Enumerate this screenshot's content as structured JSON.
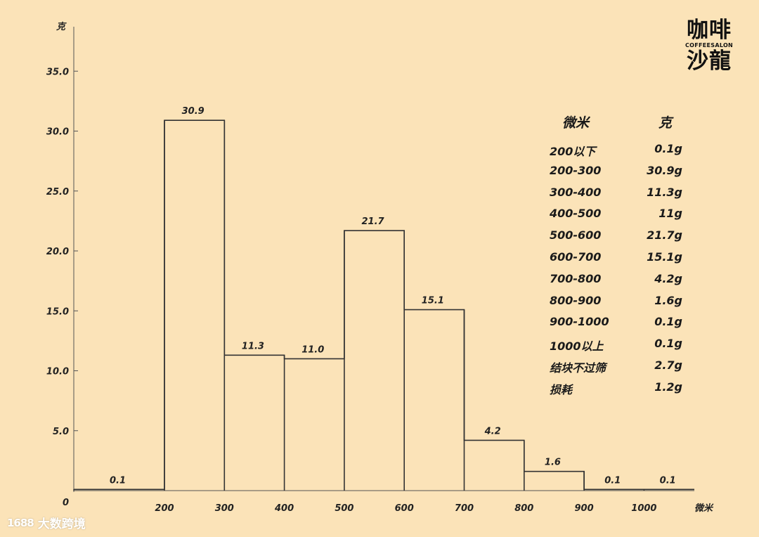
{
  "chart_data": {
    "type": "bar",
    "xlabel": "微米",
    "ylabel": "克",
    "ylim": [
      0,
      38
    ],
    "xlim": [
      0,
      1080
    ],
    "y_ticks": [
      {
        "value": 5,
        "label": "5.0"
      },
      {
        "value": 10,
        "label": "10.0"
      },
      {
        "value": 15,
        "label": "15.0"
      },
      {
        "value": 20,
        "label": "20.0"
      },
      {
        "value": 25,
        "label": "25.0"
      },
      {
        "value": 30,
        "label": "30.0"
      },
      {
        "value": 35,
        "label": "35.0"
      }
    ],
    "origin_label": "0",
    "x_ticks": [
      {
        "value": 200,
        "label": "200"
      },
      {
        "value": 300,
        "label": "300"
      },
      {
        "value": 400,
        "label": "400"
      },
      {
        "value": 500,
        "label": "500"
      },
      {
        "value": 600,
        "label": "600"
      },
      {
        "value": 700,
        "label": "700"
      },
      {
        "value": 800,
        "label": "800"
      },
      {
        "value": 900,
        "label": "900"
      },
      {
        "value": 1000,
        "label": "1000"
      }
    ],
    "bins": [
      {
        "x0": 0,
        "x1": 200,
        "value": 0.1,
        "label": "0.1"
      },
      {
        "x0": 200,
        "x1": 300,
        "value": 30.9,
        "label": "30.9"
      },
      {
        "x0": 300,
        "x1": 400,
        "value": 11.3,
        "label": "11.3"
      },
      {
        "x0": 400,
        "x1": 500,
        "value": 11.0,
        "label": "11.0"
      },
      {
        "x0": 500,
        "x1": 600,
        "value": 21.7,
        "label": "21.7"
      },
      {
        "x0": 600,
        "x1": 700,
        "value": 15.1,
        "label": "15.1"
      },
      {
        "x0": 700,
        "x1": 800,
        "value": 4.2,
        "label": "4.2"
      },
      {
        "x0": 800,
        "x1": 900,
        "value": 1.6,
        "label": "1.6"
      },
      {
        "x0": 900,
        "x1": 1000,
        "value": 0.1,
        "label": "0.1"
      },
      {
        "x0": 1000,
        "x1": 1090,
        "value": 0.1,
        "label": "0.1"
      }
    ],
    "grid": false,
    "legend": "none"
  },
  "logo": {
    "line1": "咖啡",
    "line2": "COFFEESALON",
    "line3": "沙龍"
  },
  "table": {
    "headers": [
      "微米",
      "克"
    ],
    "rows": [
      [
        "200以下",
        "0.1g"
      ],
      [
        "200-300",
        "30.9g"
      ],
      [
        "300-400",
        "11.3g"
      ],
      [
        "400-500",
        "11g"
      ],
      [
        "500-600",
        "21.7g"
      ],
      [
        "600-700",
        "15.1g"
      ],
      [
        "700-800",
        "4.2g"
      ],
      [
        "800-900",
        "1.6g"
      ],
      [
        "900-1000",
        "0.1g"
      ],
      [
        "1000以上",
        "0.1g"
      ],
      [
        "结块不过筛",
        "2.7g"
      ],
      [
        "损耗",
        "1.2g"
      ]
    ]
  },
  "watermark": {
    "icon": "1688",
    "text": "大数跨境"
  }
}
